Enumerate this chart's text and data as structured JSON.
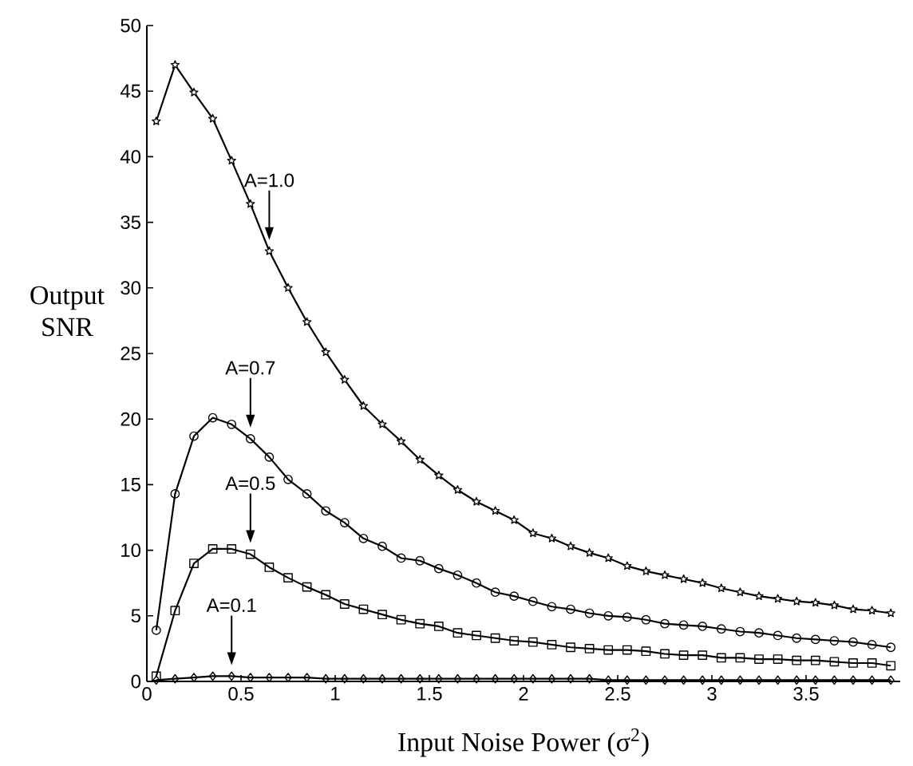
{
  "chart_data": {
    "type": "line",
    "xlabel": "Input Noise Power  (σ$^{2}$)",
    "ylabel": "Output SNR",
    "x": [
      0.05,
      0.15,
      0.25,
      0.35,
      0.45,
      0.55,
      0.65,
      0.75,
      0.85,
      0.95,
      1.05,
      1.15,
      1.25,
      1.35,
      1.45,
      1.55,
      1.65,
      1.75,
      1.85,
      1.95,
      2.05,
      2.15,
      2.25,
      2.35,
      2.45,
      2.55,
      2.65,
      2.75,
      2.85,
      2.95,
      3.05,
      3.15,
      3.25,
      3.35,
      3.45,
      3.55,
      3.65,
      3.75,
      3.85,
      3.95
    ],
    "series": [
      {
        "color": "#000000",
        "marker": "star",
        "values": [
          42.7,
          47.0,
          44.9,
          42.9,
          39.7,
          36.4,
          32.8,
          30.0,
          27.4,
          25.1,
          23.0,
          21.0,
          19.6,
          18.3,
          16.9,
          15.7,
          14.6,
          13.7,
          13.0,
          12.3,
          11.3,
          10.9,
          10.3,
          9.8,
          9.4,
          8.8,
          8.4,
          8.1,
          7.8,
          7.5,
          7.1,
          6.8,
          6.5,
          6.3,
          6.1,
          6.0,
          5.8,
          5.5,
          5.4,
          5.2
        ]
      },
      {
        "color": "#000000",
        "marker": "circle",
        "values": [
          3.9,
          14.3,
          18.7,
          20.1,
          19.6,
          18.5,
          17.1,
          15.4,
          14.3,
          13.0,
          12.1,
          10.9,
          10.3,
          9.4,
          9.2,
          8.6,
          8.1,
          7.5,
          6.8,
          6.5,
          6.1,
          5.7,
          5.5,
          5.2,
          5.0,
          4.9,
          4.7,
          4.4,
          4.3,
          4.2,
          4.0,
          3.8,
          3.7,
          3.5,
          3.3,
          3.2,
          3.1,
          3.0,
          2.8,
          2.6
        ]
      },
      {
        "color": "#000000",
        "marker": "square",
        "values": [
          0.4,
          5.4,
          9.0,
          10.1,
          10.1,
          9.7,
          8.7,
          7.9,
          7.2,
          6.6,
          5.9,
          5.5,
          5.1,
          4.7,
          4.4,
          4.2,
          3.7,
          3.5,
          3.3,
          3.1,
          3.0,
          2.8,
          2.6,
          2.5,
          2.4,
          2.4,
          2.3,
          2.1,
          2.0,
          2.0,
          1.8,
          1.8,
          1.7,
          1.7,
          1.6,
          1.6,
          1.5,
          1.4,
          1.4,
          1.2
        ]
      },
      {
        "color": "#000000",
        "marker": "diamond",
        "values": [
          0.1,
          0.2,
          0.3,
          0.4,
          0.4,
          0.3,
          0.3,
          0.3,
          0.3,
          0.2,
          0.2,
          0.2,
          0.2,
          0.2,
          0.2,
          0.2,
          0.2,
          0.2,
          0.2,
          0.2,
          0.2,
          0.2,
          0.2,
          0.2,
          0.1,
          0.1,
          0.1,
          0.1,
          0.1,
          0.1,
          0.1,
          0.1,
          0.1,
          0.1,
          0.1,
          0.1,
          0.1,
          0.1,
          0.1,
          0.1
        ]
      }
    ],
    "annotations": [
      "A=1.0",
      "A=0.7",
      "A=0.5",
      "A=0.1"
    ],
    "xlim": [
      0,
      4
    ],
    "ylim": [
      0,
      50
    ],
    "xticks": [
      0,
      0.5,
      1,
      1.5,
      2,
      2.5,
      3,
      3.5
    ],
    "yticks": [
      0,
      5,
      10,
      15,
      20,
      25,
      30,
      35,
      40,
      45,
      50
    ],
    "grid": false,
    "line_style": "solid"
  }
}
